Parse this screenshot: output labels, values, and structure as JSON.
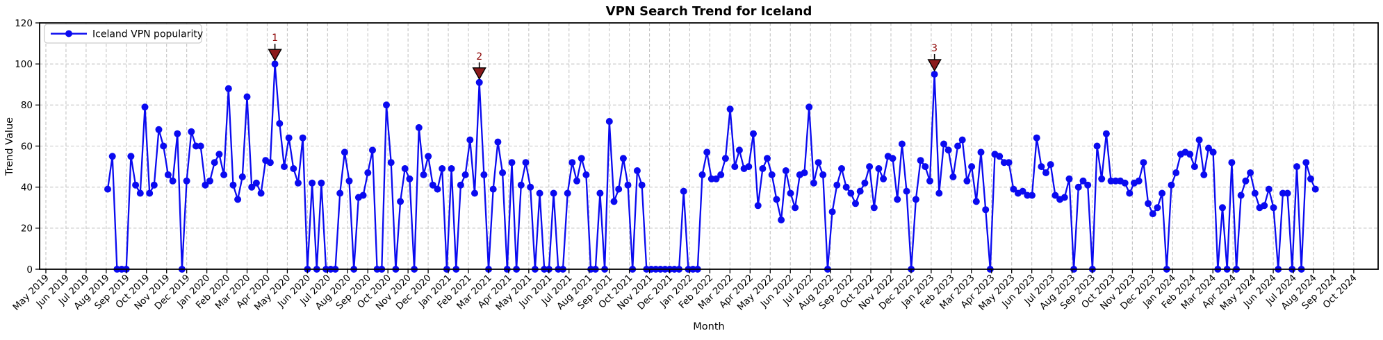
{
  "title": "VPN Search Trend for Iceland",
  "axes": {
    "x_label": "Month",
    "y_label": "Trend Value",
    "y_ticks": [
      0,
      20,
      40,
      60,
      80,
      100,
      120
    ],
    "y_max": 120
  },
  "legend": {
    "label": "Iceland VPN popularity"
  },
  "colors": {
    "line": "#0a0af0",
    "marker": "#0a0af0",
    "annotation_text": "#8b0000",
    "annotation_fill": "#8b1a1a",
    "annotation_edge": "#000000",
    "grid": "#c4c4c4",
    "spine": "#000000",
    "legend_border": "#cccccc",
    "background": "#ffffff"
  },
  "chart_data": {
    "type": "line",
    "title": "VPN Search Trend for Iceland",
    "xlabel": "Month",
    "ylabel": "Trend Value",
    "ylim": [
      0,
      120
    ],
    "grid": true,
    "legend_position": "upper left",
    "series_name": "Iceland VPN popularity",
    "frequency": "weekly",
    "first_point_month": "Aug 2019",
    "last_point_month": "Aug 2024",
    "x_tick_labels": [
      "May 2019",
      "Jun 2019",
      "Jul 2019",
      "Aug 2019",
      "Sep 2019",
      "Oct 2019",
      "Nov 2019",
      "Dec 2019",
      "Jan 2020",
      "Feb 2020",
      "Mar 2020",
      "Apr 2020",
      "May 2020",
      "Jun 2020",
      "Jul 2020",
      "Aug 2020",
      "Sep 2020",
      "Oct 2020",
      "Nov 2020",
      "Dec 2020",
      "Jan 2021",
      "Feb 2021",
      "Mar 2021",
      "Apr 2021",
      "May 2021",
      "Jun 2021",
      "Jul 2021",
      "Aug 2021",
      "Sep 2021",
      "Oct 2021",
      "Nov 2021",
      "Dec 2021",
      "Jan 2022",
      "Feb 2022",
      "Mar 2022",
      "Apr 2022",
      "May 2022",
      "Jun 2022",
      "Jul 2022",
      "Aug 2022",
      "Sep 2022",
      "Oct 2022",
      "Nov 2022",
      "Dec 2022",
      "Jan 2023",
      "Feb 2023",
      "Mar 2023",
      "Apr 2023",
      "May 2023",
      "Jun 2023",
      "Jul 2023",
      "Aug 2023",
      "Sep 2023",
      "Oct 2023",
      "Nov 2023",
      "Dec 2023",
      "Jan 2024",
      "Feb 2024",
      "Mar 2024",
      "Apr 2024",
      "May 2024",
      "Jun 2024",
      "Jul 2024",
      "Aug 2024",
      "Sep 2024",
      "Oct 2024"
    ],
    "values": [
      39,
      55,
      0,
      0,
      0,
      55,
      41,
      37,
      79,
      37,
      41,
      68,
      60,
      46,
      43,
      66,
      0,
      43,
      67,
      60,
      60,
      41,
      43,
      52,
      56,
      46,
      88,
      41,
      34,
      45,
      84,
      40,
      42,
      37,
      53,
      52,
      100,
      71,
      50,
      64,
      49,
      42,
      64,
      0,
      42,
      0,
      42,
      0,
      0,
      0,
      37,
      57,
      43,
      0,
      35,
      36,
      47,
      58,
      0,
      0,
      80,
      52,
      0,
      33,
      49,
      44,
      0,
      69,
      46,
      55,
      41,
      39,
      49,
      0,
      49,
      0,
      41,
      46,
      63,
      37,
      91,
      46,
      0,
      39,
      62,
      47,
      0,
      52,
      0,
      41,
      52,
      40,
      0,
      37,
      0,
      0,
      37,
      0,
      0,
      37,
      52,
      43,
      54,
      46,
      0,
      0,
      37,
      0,
      72,
      33,
      39,
      54,
      41,
      0,
      48,
      41,
      0,
      0,
      0,
      0,
      0,
      0,
      0,
      0,
      38,
      0,
      0,
      0,
      46,
      57,
      44,
      44,
      46,
      54,
      78,
      50,
      58,
      49,
      50,
      66,
      31,
      49,
      54,
      46,
      34,
      24,
      48,
      37,
      30,
      46,
      47,
      79,
      42,
      52,
      46,
      0,
      28,
      41,
      49,
      40,
      37,
      32,
      38,
      42,
      50,
      30,
      49,
      44,
      55,
      54,
      34,
      61,
      38,
      0,
      34,
      53,
      50,
      43,
      95,
      37,
      61,
      58,
      45,
      60,
      63,
      43,
      50,
      33,
      57,
      29,
      0,
      56,
      55,
      52,
      52,
      39,
      37,
      38,
      36,
      36,
      64,
      50,
      47,
      51,
      36,
      34,
      35,
      44,
      0,
      40,
      43,
      41,
      0,
      60,
      44,
      66,
      43,
      43,
      43,
      42,
      37,
      42,
      43,
      52,
      32,
      27,
      30,
      37,
      0,
      41,
      47,
      56,
      57,
      56,
      50,
      63,
      46,
      59,
      57,
      0,
      30,
      0,
      52,
      0,
      36,
      43,
      47,
      37,
      30,
      31,
      39,
      30,
      0,
      37,
      37,
      0,
      50,
      0,
      52,
      44,
      39
    ],
    "annotations": [
      {
        "label": "1",
        "index": 36,
        "value": 100
      },
      {
        "label": "2",
        "index": 80,
        "value": 91
      },
      {
        "label": "3",
        "index": 178,
        "value": 95
      }
    ]
  }
}
